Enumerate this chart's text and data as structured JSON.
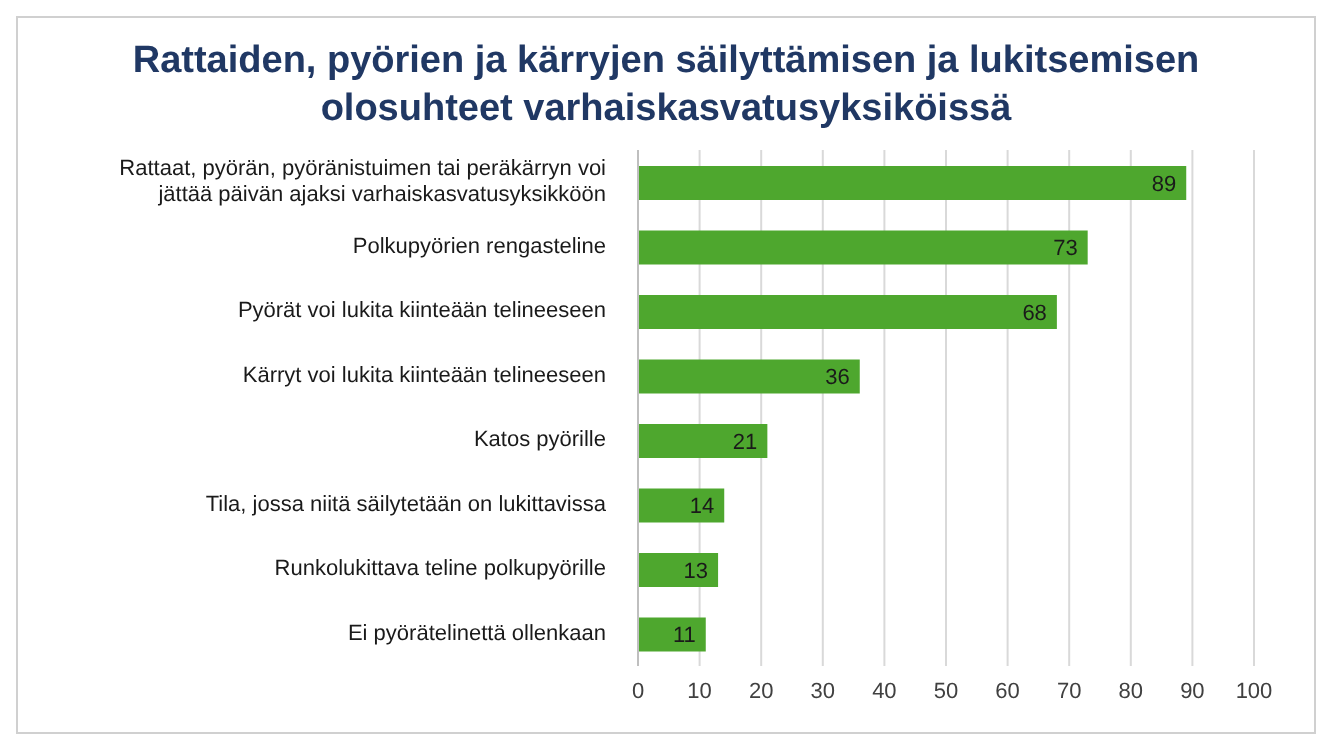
{
  "chart_data": {
    "type": "bar",
    "orientation": "horizontal",
    "title": "Rattaiden, pyörien ja kärryjen säilyttämisen ja lukitsemisen olosuhteet varhaiskasvatusyksiköissä",
    "categories": [
      "Rattaat, pyörän, pyöränistuimen tai peräkärryn voi jättää päivän ajaksi varhaiskasvatusyksikköön",
      "Polkupyörien rengasteline",
      "Pyörät voi lukita kiinteään telineeseen",
      "Kärryt voi lukita kiinteään telineeseen",
      "Katos pyörille",
      "Tila, jossa niitä säilytetään on lukittavissa",
      "Runkolukittava teline polkupyörille",
      "Ei pyörätelinettä ollenkaan"
    ],
    "values": [
      89,
      73,
      68,
      36,
      21,
      14,
      13,
      11
    ],
    "color": "#4ea72e",
    "xlim": [
      0,
      100
    ],
    "xticks": [
      0,
      10,
      20,
      30,
      40,
      50,
      60,
      70,
      80,
      90,
      100
    ],
    "grid": "x",
    "data_labels": true,
    "legend": false
  }
}
